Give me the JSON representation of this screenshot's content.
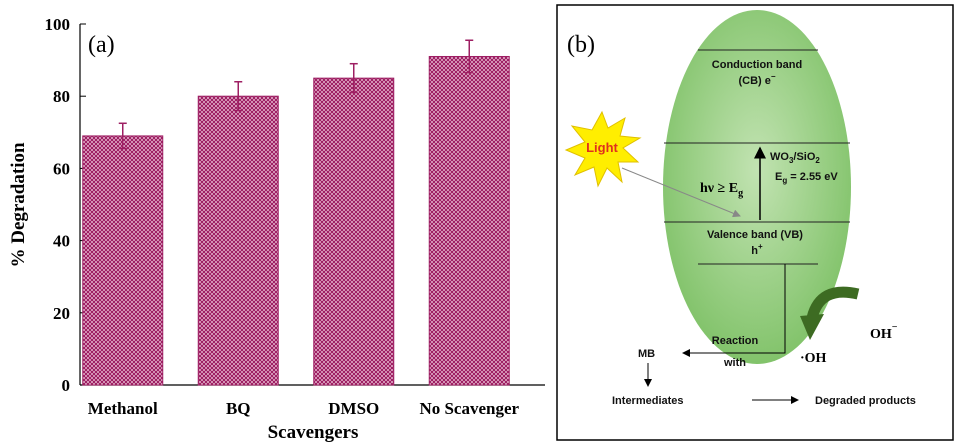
{
  "chart_data": {
    "type": "bar",
    "panel_label": "(a)",
    "x_label": "Scavengers",
    "y_label": "% Degradation",
    "categories": [
      "Methanol",
      "BQ",
      "DMSO",
      "No Scavenger"
    ],
    "series": [
      {
        "color": "#9e1f63",
        "values": [
          69,
          80,
          85,
          91
        ],
        "errors": [
          3.5,
          4,
          4,
          4.5
        ]
      }
    ],
    "ylim": [
      0,
      100
    ],
    "yticks": [
      0,
      20,
      40,
      60,
      80,
      100
    ],
    "grid": false
  },
  "diagram": {
    "label": "(b)",
    "light": "Light",
    "conduction_band": {
      "line1": "Conduction band",
      "line2": "(CB) e",
      "sup": "−"
    },
    "material": {
      "main": "WO",
      "sub1": "3",
      "mid": "/SiO",
      "sub2": "2"
    },
    "band_gap": {
      "symbol": "E",
      "sub": "g",
      "rest": " = 2.55 eV"
    },
    "photon": {
      "main": "hν ≥ E",
      "sub": "g"
    },
    "valence_band": {
      "line1": "Valence band (VB)",
      "line2": "h",
      "sup": "+"
    },
    "hydroxide": {
      "main": "OH",
      "sup": "−"
    },
    "radical": "·OH",
    "reaction": {
      "line1": "Reaction",
      "line2": "with"
    },
    "mb": "MB",
    "intermediates": "Intermediates",
    "products": "Degraded products"
  }
}
